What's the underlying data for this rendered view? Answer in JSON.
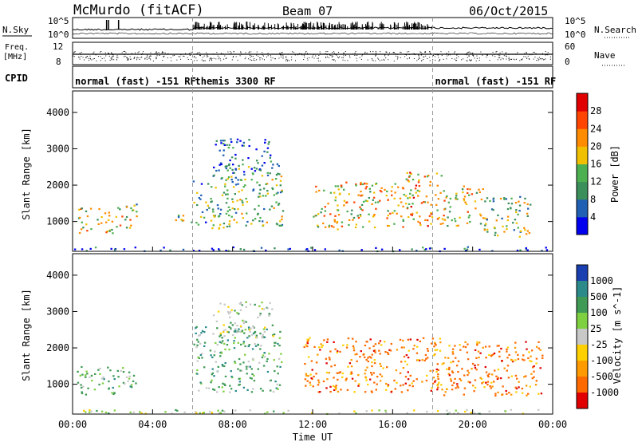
{
  "header": {
    "station": "McMurdo (fitACF)",
    "beam": "Beam 07",
    "date": "06/Oct/2015"
  },
  "panels": {
    "nsky_label": "N.Sky",
    "nsearch_label": "N.Search",
    "nsky_ticks": [
      "10^5",
      "10^0"
    ],
    "nsearch_ticks": [
      "10^5",
      "10^0"
    ],
    "freq_label": "Freq.",
    "freq_units": "[MHz]",
    "freq_ticks": [
      "12",
      "8"
    ],
    "nave_label": "Nave",
    "nave_ticks": [
      "60",
      "0"
    ],
    "cpid_label": "CPID",
    "cpid_segments": [
      {
        "label": "normal (fast) -151 RF",
        "start_hour": 0,
        "end_hour": 6
      },
      {
        "label": "themis 3300 RF",
        "start_hour": 6,
        "end_hour": 18
      },
      {
        "label": "normal (fast) -151 RF",
        "start_hour": 18,
        "end_hour": 24
      }
    ]
  },
  "chart_data": [
    {
      "type": "heatmap",
      "name": "power",
      "ylabel": "Slant Range [km]",
      "xlabel": "",
      "ylim": [
        180,
        4590
      ],
      "yticks": [
        "1000",
        "2000",
        "3000",
        "4000"
      ],
      "colorbar_label": "Power [dB]",
      "colorbar_ticks": [
        "4",
        "8",
        "12",
        "16",
        "20",
        "24",
        "28"
      ],
      "colorbar_colors": [
        "#0000ee",
        "#1f5fb4",
        "#3a8f5a",
        "#4caf50",
        "#f0c000",
        "#ff8c00",
        "#ff4500",
        "#e00000"
      ],
      "regions": [
        {
          "t0": 0.2,
          "t1": 2.0,
          "r0": 700,
          "r1": 1400,
          "level": 0.55
        },
        {
          "t0": 2.0,
          "t1": 3.2,
          "r0": 800,
          "r1": 1500,
          "level": 0.5
        },
        {
          "t0": 5.0,
          "t1": 6.0,
          "r0": 900,
          "r1": 1200,
          "level": 0.45
        },
        {
          "t0": 6.0,
          "t1": 8.0,
          "r0": 800,
          "r1": 2300,
          "level": 0.35
        },
        {
          "t0": 8.0,
          "t1": 10.5,
          "r0": 900,
          "r1": 2600,
          "level": 0.4
        },
        {
          "t0": 7.0,
          "t1": 10.0,
          "r0": 2300,
          "r1": 3300,
          "level": 0.2
        },
        {
          "t0": 12.0,
          "t1": 16.5,
          "r0": 800,
          "r1": 2100,
          "level": 0.6
        },
        {
          "t0": 16.5,
          "t1": 18.5,
          "r0": 900,
          "r1": 2400,
          "level": 0.65
        },
        {
          "t0": 18.5,
          "t1": 20.5,
          "r0": 900,
          "r1": 2000,
          "level": 0.55
        },
        {
          "t0": 20.5,
          "t1": 23.0,
          "r0": 600,
          "r1": 1700,
          "level": 0.45
        },
        {
          "t0": 0.0,
          "t1": 24.0,
          "r0": 200,
          "r1": 320,
          "level": 0.15
        }
      ]
    },
    {
      "type": "heatmap",
      "name": "velocity",
      "ylabel": "Slant Range [km]",
      "xlabel": "Time UT",
      "ylim": [
        180,
        4590
      ],
      "yticks": [
        "1000",
        "2000",
        "3000",
        "4000"
      ],
      "xticks": [
        "00:00",
        "04:00",
        "08:00",
        "12:00",
        "16:00",
        "20:00",
        "00:00"
      ],
      "colorbar_label": "Velocity [m s^-1]",
      "colorbar_ticks": [
        "1000",
        "500",
        "100",
        "25",
        "-25",
        "-100",
        "-500",
        "-1000"
      ],
      "colorbar_colors": [
        "#1a3fb0",
        "#2c8a8a",
        "#3f9a55",
        "#7fd040",
        "#c8c8c8",
        "#ffd000",
        "#ff9a00",
        "#ff6a00",
        "#e00000"
      ],
      "regions": [
        {
          "t0": 0.2,
          "t1": 3.2,
          "r0": 700,
          "r1": 1500,
          "level": "positive"
        },
        {
          "t0": 6.0,
          "t1": 10.5,
          "r0": 800,
          "r1": 2600,
          "level": "positive"
        },
        {
          "t0": 7.0,
          "t1": 10.0,
          "r0": 2300,
          "r1": 3300,
          "level": "low"
        },
        {
          "t0": 11.5,
          "t1": 18.5,
          "r0": 800,
          "r1": 2300,
          "level": "negative"
        },
        {
          "t0": 18.5,
          "t1": 23.5,
          "r0": 700,
          "r1": 2200,
          "level": "negative"
        },
        {
          "t0": 0.0,
          "t1": 24.0,
          "r0": 200,
          "r1": 320,
          "level": "low"
        }
      ]
    }
  ],
  "time_axis": {
    "xlim_hours": [
      0,
      24
    ],
    "markers_hours": [
      6,
      18
    ]
  }
}
